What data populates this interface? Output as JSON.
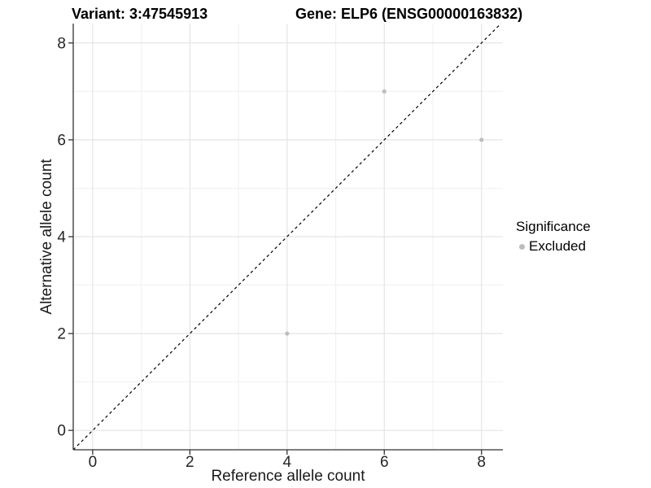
{
  "chart_data": {
    "type": "scatter",
    "title_left": "Variant: 3:47545913",
    "title_right": "Gene: ELP6 (ENSG00000163832)",
    "xlabel": "Reference allele count",
    "ylabel": "Alternative allele count",
    "xlim": [
      -0.4,
      8.44
    ],
    "ylim": [
      -0.4,
      8.4
    ],
    "x_major_ticks": [
      0,
      2,
      4,
      6,
      8
    ],
    "y_major_ticks": [
      0,
      2,
      4,
      6,
      8
    ],
    "x_minor_ticks": [
      1,
      3,
      5,
      7
    ],
    "y_minor_ticks": [
      1,
      3,
      5,
      7
    ],
    "grid": true,
    "series": [
      {
        "name": "Excluded",
        "marker_color": "#bdbdbd",
        "points": [
          [
            6,
            7
          ],
          [
            8,
            6
          ],
          [
            4,
            2
          ]
        ]
      }
    ],
    "reference_line": {
      "type": "identity",
      "slope": 1,
      "intercept": 0,
      "style": "dashed",
      "color": "#000000"
    },
    "legend": {
      "title": "Significance",
      "position": "right",
      "items": [
        {
          "label": "Excluded",
          "color": "#bdbdbd"
        }
      ]
    }
  },
  "colors": {
    "background": "#ffffff",
    "grid_major": "#e4e4e4",
    "grid_minor": "#f0f0f0",
    "axis_line": "#333333",
    "tick_text": "#262626",
    "title_text": "#000000"
  }
}
